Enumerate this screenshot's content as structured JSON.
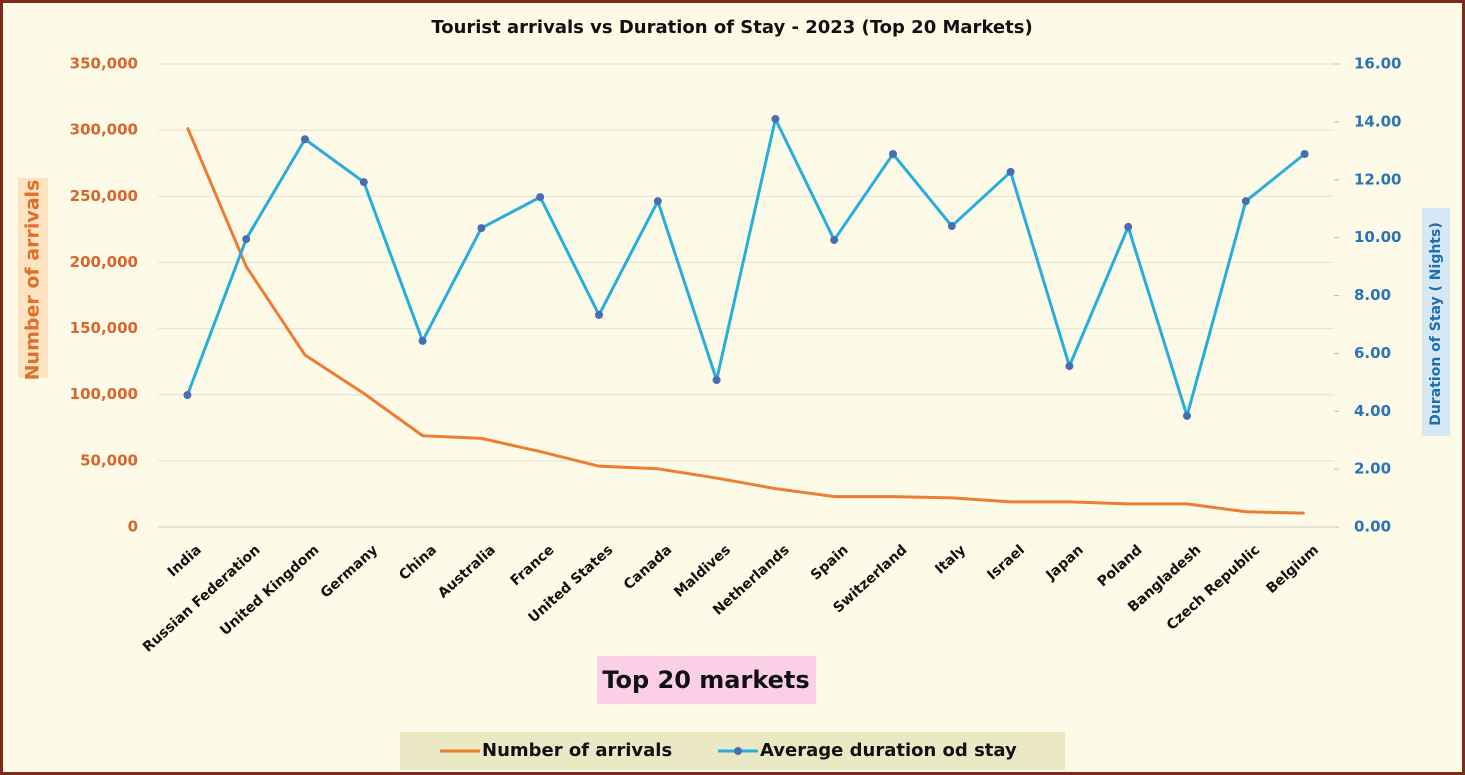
{
  "chart_data": {
    "type": "line",
    "title": "Tourist arrivals vs Duration of Stay - 2023 (Top 20 Markets)",
    "xlabel": "Top 20 markets",
    "ylabel": "Number of arrivals",
    "y2label": "Duration of Stay ( Nights)",
    "categories": [
      "India",
      "Russian Federation",
      "United Kingdom",
      "Germany",
      "China",
      "Australia",
      "France",
      "United States",
      "Canada",
      "Maldives",
      "Netherlands",
      "Spain",
      "Switzerland",
      "Italy",
      "Israel",
      "Japan",
      "Poland",
      "Bangladesh",
      "Czech Republic",
      "Belgium"
    ],
    "series": [
      {
        "name": "Number of arrivals",
        "color": "#ed7d31",
        "axis": "y",
        "values": [
          302000,
          197000,
          130000,
          101000,
          69000,
          67000,
          57000,
          46000,
          44000,
          37000,
          29000,
          23000,
          23000,
          22000,
          19000,
          19000,
          17500,
          17500,
          11500,
          10500
        ]
      },
      {
        "name": "Average duration od stay",
        "color": "#27aedc",
        "axis": "y2",
        "marker_color": "#4a6cb3",
        "values": [
          4.56,
          9.95,
          13.4,
          11.92,
          6.43,
          10.33,
          11.4,
          7.33,
          11.26,
          5.08,
          14.1,
          9.92,
          12.89,
          10.4,
          12.27,
          5.56,
          10.37,
          3.84,
          11.26,
          12.89
        ]
      }
    ],
    "ylim": [
      0,
      350000
    ],
    "yticks": [
      0,
      {
        "value": 50000,
        "label": "50,000"
      },
      {
        "value": 100000,
        "label": "100,000"
      },
      {
        "value": 150000,
        "label": "150,000"
      },
      {
        "value": 200000,
        "label": "200,000"
      },
      {
        "value": 250000,
        "label": "250,000"
      },
      {
        "value": 300000,
        "label": "300,000"
      },
      {
        "value": 350000,
        "label": "350,000"
      }
    ],
    "y2lim": [
      0,
      16
    ],
    "y2ticks": [
      {
        "value": 0,
        "label": "0.00"
      },
      {
        "value": 2,
        "label": "2.00"
      },
      {
        "value": 4,
        "label": "4.00"
      },
      {
        "value": 6,
        "label": "6.00"
      },
      {
        "value": 8,
        "label": "8.00"
      },
      {
        "value": 10,
        "label": "10.00"
      },
      {
        "value": 12,
        "label": "12.00"
      },
      {
        "value": 14,
        "label": "14.00"
      },
      {
        "value": 16,
        "label": "16.00"
      }
    ],
    "grid": true,
    "legend": "bottom"
  }
}
